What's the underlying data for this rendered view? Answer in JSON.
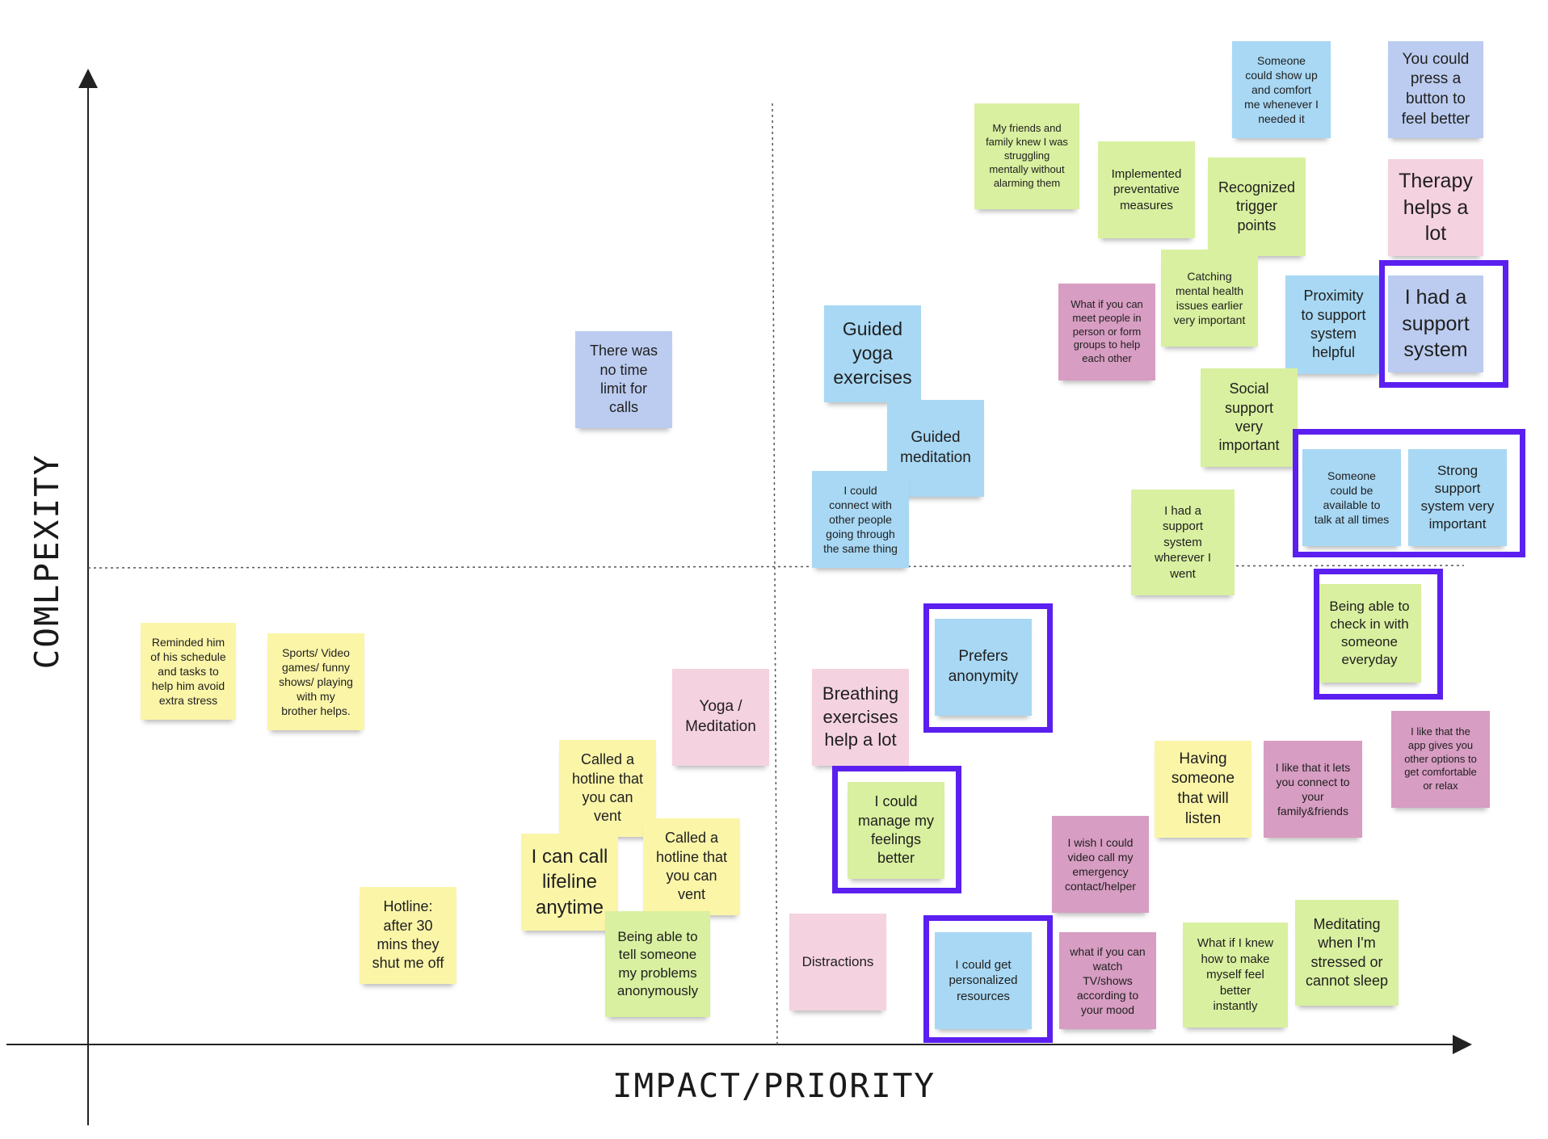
{
  "axes": {
    "x_label": "IMPACT/PRIORITY",
    "y_label": "COMLPEXITY"
  },
  "colors": {
    "yellow": "#fbf5a8",
    "green": "#d9f0a0",
    "blue": "#a8d8f4",
    "periwinkle": "#bcccf0",
    "pink": "#f5d2e0",
    "magenta": "#d79dc2",
    "highlight": "#5b1ff0"
  },
  "notes": [
    {
      "id": "n1",
      "text": "Someone\ncould show up\nand comfort\nme whenever I\nneeded it",
      "color": "blue"
    },
    {
      "id": "n2",
      "text": "You could\npress a\nbutton to\nfeel better",
      "color": "periwinkle"
    },
    {
      "id": "n3",
      "text": "My friends and\nfamily knew I was\nstruggling\nmentally without\nalarming them",
      "color": "green"
    },
    {
      "id": "n4",
      "text": "Implemented\npreventative\nmeasures",
      "color": "green"
    },
    {
      "id": "n5",
      "text": "Recognized\ntrigger\npoints",
      "color": "green"
    },
    {
      "id": "n6",
      "text": "Therapy\nhelps a\nlot",
      "color": "pink"
    },
    {
      "id": "n7",
      "text": "Catching\nmental health\nissues earlier\nvery important",
      "color": "green"
    },
    {
      "id": "n8",
      "text": "What if you can\nmeet people in\nperson or form\ngroups to help\neach other",
      "color": "magenta"
    },
    {
      "id": "n9",
      "text": "Proximity\nto support\nsystem\nhelpful",
      "color": "blue"
    },
    {
      "id": "n10",
      "text": "I had a\nsupport\nsystem",
      "color": "periwinkle"
    },
    {
      "id": "n11",
      "text": "Guided\nyoga\nexercises",
      "color": "blue"
    },
    {
      "id": "n12",
      "text": "There was\nno time\nlimit for\ncalls",
      "color": "periwinkle"
    },
    {
      "id": "n13",
      "text": "Social\nsupport\nvery\nimportant",
      "color": "green"
    },
    {
      "id": "n14",
      "text": "Guided\nmeditation",
      "color": "blue"
    },
    {
      "id": "n15",
      "text": "I could\nconnect with\nother people\ngoing through\nthe same thing",
      "color": "blue"
    },
    {
      "id": "n16",
      "text": "Someone\ncould be\navailable to\ntalk at all times",
      "color": "blue"
    },
    {
      "id": "n17",
      "text": "Strong\nsupport\nsystem very\nimportant",
      "color": "blue"
    },
    {
      "id": "n18",
      "text": "I had a\nsupport\nsystem\nwherever I\nwent",
      "color": "green"
    },
    {
      "id": "n19",
      "text": "Being able to\ncheck in with\nsomeone\neveryday",
      "color": "green"
    },
    {
      "id": "n20",
      "text": "Reminded him\nof his schedule\nand tasks to\nhelp him avoid\nextra stress",
      "color": "yellow"
    },
    {
      "id": "n21",
      "text": "Sports/ Video\ngames/ funny\nshows/ playing\nwith my\nbrother helps.",
      "color": "yellow"
    },
    {
      "id": "n22",
      "text": "Prefers\nanonymity",
      "color": "blue"
    },
    {
      "id": "n23",
      "text": "Yoga /\nMeditation",
      "color": "pink"
    },
    {
      "id": "n24",
      "text": "Breathing\nexercises\nhelp a lot",
      "color": "pink"
    },
    {
      "id": "n25",
      "text": "I like that the\napp gives you\nother options to\nget comfortable\nor relax",
      "color": "magenta"
    },
    {
      "id": "n26",
      "text": "Having\nsomeone\nthat will\nlisten",
      "color": "yellow"
    },
    {
      "id": "n27",
      "text": "I like that it lets\nyou connect to\nyour\nfamily&friends",
      "color": "magenta"
    },
    {
      "id": "n28",
      "text": "Called a\nhotline that\nyou can\nvent",
      "color": "yellow"
    },
    {
      "id": "n29",
      "text": "I could\nmanage my\nfeelings\nbetter",
      "color": "green"
    },
    {
      "id": "n30",
      "text": "I can call\nlifeline\nanytime",
      "color": "yellow"
    },
    {
      "id": "n31",
      "text": "Called a\nhotline that\nyou can\nvent",
      "color": "yellow"
    },
    {
      "id": "n32",
      "text": "I wish I could\nvideo call my\nemergency\ncontact/helper",
      "color": "magenta"
    },
    {
      "id": "n33",
      "text": "Hotline:\nafter 30\nmins they\nshut me off",
      "color": "yellow"
    },
    {
      "id": "n34",
      "text": "Being able to\ntell someone\nmy problems\nanonymously",
      "color": "green"
    },
    {
      "id": "n35",
      "text": "Distractions",
      "color": "pink"
    },
    {
      "id": "n36",
      "text": "I could get\npersonalized\nresources",
      "color": "blue"
    },
    {
      "id": "n37",
      "text": "what if you can\nwatch\nTV/shows\naccording to\nyour mood",
      "color": "magenta"
    },
    {
      "id": "n38",
      "text": "What if I knew\nhow to make\nmyself feel\nbetter\ninstantly",
      "color": "green"
    },
    {
      "id": "n39",
      "text": "Meditating\nwhen I'm\nstressed or\ncannot sleep",
      "color": "green"
    }
  ],
  "highlighted": [
    "n10",
    "n16",
    "n17",
    "n19",
    "n22",
    "n29",
    "n36"
  ]
}
